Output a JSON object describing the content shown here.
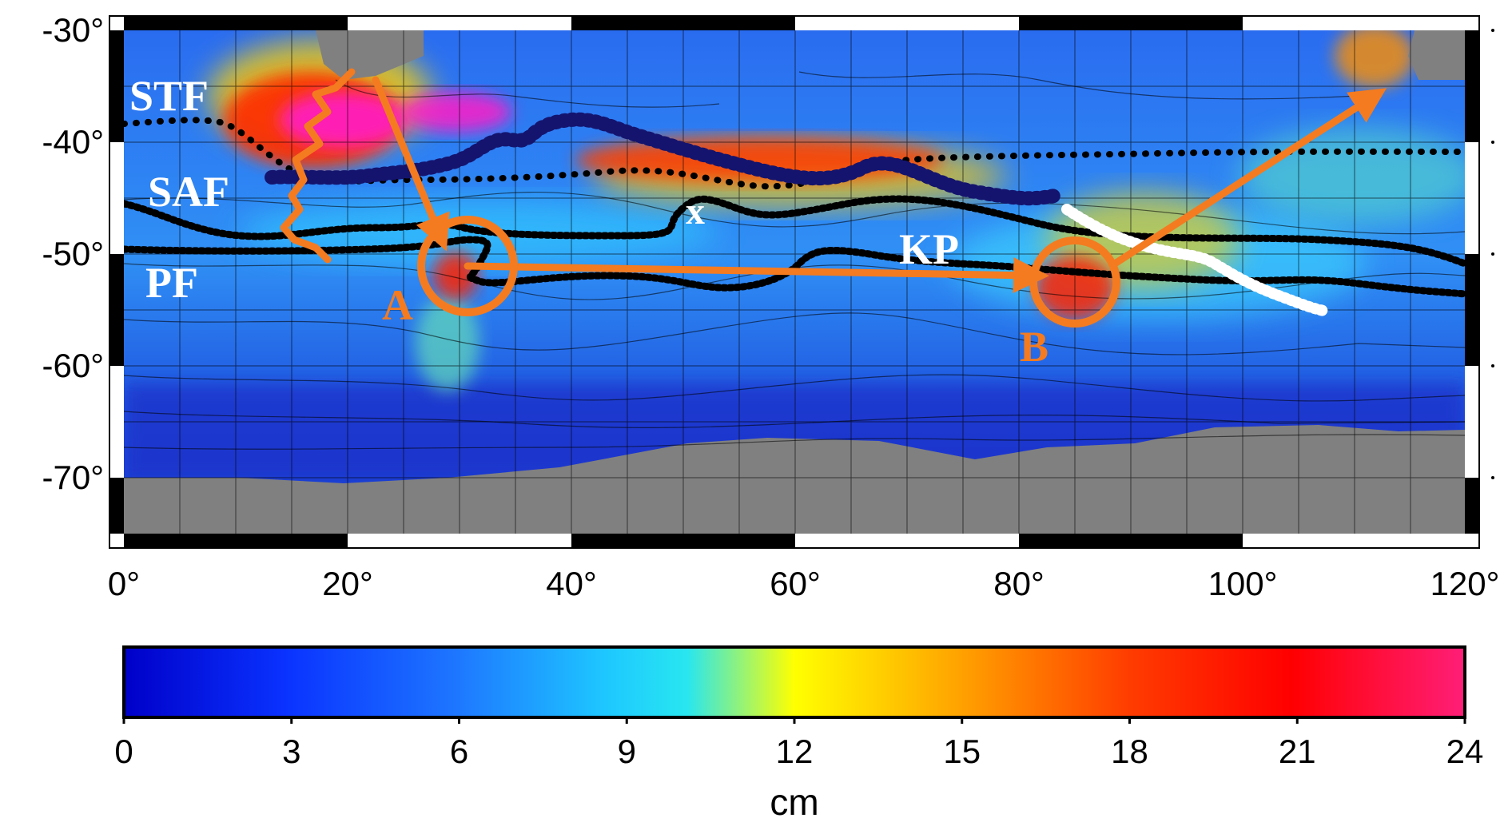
{
  "map": {
    "x_ticks": [
      "0°",
      "20°",
      "40°",
      "60°",
      "80°",
      "100°",
      "120°"
    ],
    "y_ticks": [
      "-30°",
      "-40°",
      "-50°",
      "-60°",
      "-70°"
    ],
    "front_labels": {
      "stf": "STF",
      "saf": "SAF",
      "pf": "PF"
    },
    "region_labels": {
      "a": "A",
      "b": "B",
      "kp": "KP",
      "x": "x"
    },
    "colors": {
      "land": "#808080",
      "arrow": "#f47b20",
      "front_saf_dots": "#14146e",
      "front_black": "#000000",
      "white_track": "#ffffff"
    }
  },
  "colorbar": {
    "ticks": [
      "0",
      "3",
      "6",
      "9",
      "12",
      "15",
      "18",
      "21",
      "24"
    ],
    "unit": "cm",
    "stops": [
      "#0000c8",
      "#1e46ff",
      "#1f8cff",
      "#1ee6ff",
      "#ffff00",
      "#ffa500",
      "#ff3c00",
      "#ff0000",
      "#ff1e78"
    ]
  }
}
